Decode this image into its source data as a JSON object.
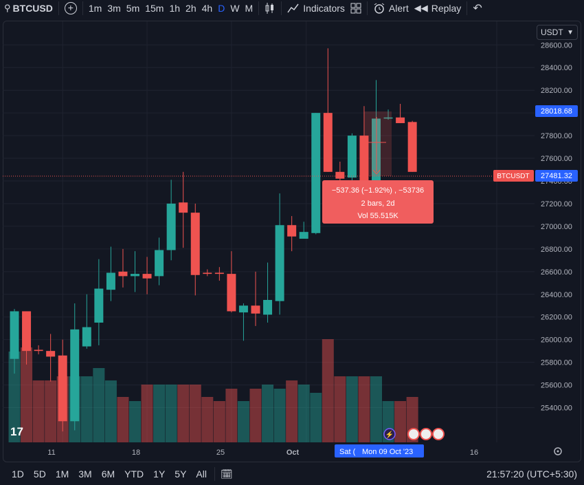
{
  "toolbar": {
    "symbol": "BTCUSD",
    "intervals": [
      "1m",
      "3m",
      "5m",
      "15m",
      "1h",
      "2h",
      "4h",
      "D",
      "W",
      "M"
    ],
    "active_interval": "D",
    "indicators_label": "Indicators",
    "alert_label": "Alert",
    "replay_label": "Replay"
  },
  "currency": "USDT",
  "price_axis": {
    "labels": [
      "28600.00",
      "28400.00",
      "28200.00",
      "28000.00",
      "27800.00",
      "27600.00",
      "27400.00",
      "27200.00",
      "27000.00",
      "26800.00",
      "26600.00",
      "26400.00",
      "26200.00",
      "26000.00",
      "25800.00",
      "25600.00",
      "25400.00"
    ],
    "crosshair_price": "28018.68",
    "last_price": "27481.32",
    "last_price_symbol": "BTCUSDT"
  },
  "measure_tooltip": {
    "line1": "−537.36 (−1.92%) , −53736",
    "line2": "2 bars, 2d",
    "line3": "Vol 55.515K"
  },
  "time_axis": {
    "labels": [
      "11",
      "18",
      "25",
      "Oct",
      "16"
    ],
    "hover_left": "Sat (",
    "hover_main": "Mon 09 Oct '23"
  },
  "bottom": {
    "ranges": [
      "1D",
      "5D",
      "1M",
      "3M",
      "6M",
      "YTD",
      "1Y",
      "5Y",
      "All"
    ],
    "clock": "21:57:20 (UTC+5:30)"
  },
  "colors": {
    "up": "#26a69a",
    "down": "#ef5350",
    "accent": "#2962ff"
  },
  "chart_data": {
    "type": "candlestick",
    "y_range": [
      25300,
      28620
    ],
    "candles": [
      {
        "o": 25830,
        "h": 26270,
        "l": 25700,
        "c": 26250
      },
      {
        "o": 26250,
        "h": 26250,
        "l": 25780,
        "c": 25900
      },
      {
        "o": 25910,
        "h": 25950,
        "l": 25870,
        "c": 25900
      },
      {
        "o": 25900,
        "h": 26050,
        "l": 25630,
        "c": 25850
      },
      {
        "o": 25860,
        "h": 26000,
        "l": 25190,
        "c": 25280
      },
      {
        "o": 25280,
        "h": 26320,
        "l": 25200,
        "c": 26090
      },
      {
        "o": 25940,
        "h": 26400,
        "l": 25920,
        "c": 26110
      },
      {
        "o": 26150,
        "h": 26710,
        "l": 25950,
        "c": 26450
      },
      {
        "o": 26440,
        "h": 26820,
        "l": 26340,
        "c": 26590
      },
      {
        "o": 26600,
        "h": 26800,
        "l": 26460,
        "c": 26560
      },
      {
        "o": 26560,
        "h": 26780,
        "l": 26420,
        "c": 26580
      },
      {
        "o": 26580,
        "h": 26730,
        "l": 26400,
        "c": 26540
      },
      {
        "o": 26560,
        "h": 26900,
        "l": 26480,
        "c": 26790
      },
      {
        "o": 26790,
        "h": 27410,
        "l": 26700,
        "c": 27200
      },
      {
        "o": 27210,
        "h": 27480,
        "l": 26810,
        "c": 27120
      },
      {
        "o": 27120,
        "h": 27200,
        "l": 26390,
        "c": 26570
      },
      {
        "o": 26590,
        "h": 26620,
        "l": 26560,
        "c": 26580
      },
      {
        "o": 26590,
        "h": 26640,
        "l": 26520,
        "c": 26580
      },
      {
        "o": 26580,
        "h": 26780,
        "l": 26240,
        "c": 26250
      },
      {
        "o": 26240,
        "h": 26320,
        "l": 25990,
        "c": 26300
      },
      {
        "o": 26300,
        "h": 26600,
        "l": 26120,
        "c": 26230
      },
      {
        "o": 26220,
        "h": 26680,
        "l": 26150,
        "c": 26350
      },
      {
        "o": 26340,
        "h": 27290,
        "l": 26220,
        "c": 27010
      },
      {
        "o": 27010,
        "h": 27090,
        "l": 26780,
        "c": 26910
      },
      {
        "o": 26890,
        "h": 27040,
        "l": 26890,
        "c": 26950
      },
      {
        "o": 26940,
        "h": 28000,
        "l": 26930,
        "c": 28000
      },
      {
        "o": 28000,
        "h": 28570,
        "l": 27480,
        "c": 27480
      },
      {
        "o": 27480,
        "h": 27570,
        "l": 27170,
        "c": 27420
      },
      {
        "o": 27430,
        "h": 27820,
        "l": 27150,
        "c": 27800
      },
      {
        "o": 27800,
        "h": 28060,
        "l": 27250,
        "c": 27280
      },
      {
        "o": 27330,
        "h": 28290,
        "l": 27250,
        "c": 27950
      },
      {
        "o": 27950,
        "h": 28030,
        "l": 27940,
        "c": 27960
      },
      {
        "o": 27960,
        "h": 28080,
        "l": 27910,
        "c": 27910
      },
      {
        "o": 27920,
        "h": 27930,
        "l": 27480,
        "c": 27480
      }
    ],
    "volumes": [
      2.2,
      2.3,
      1.5,
      1.5,
      1.6,
      1.6,
      1.6,
      1.8,
      1.5,
      1.1,
      1.0,
      1.4,
      1.4,
      1.4,
      1.4,
      1.4,
      1.1,
      1.0,
      1.3,
      1.0,
      1.3,
      1.4,
      1.3,
      1.5,
      1.4,
      1.2,
      2.5,
      1.6,
      1.6,
      1.6,
      1.6,
      1.0,
      1.0,
      1.1
    ]
  }
}
